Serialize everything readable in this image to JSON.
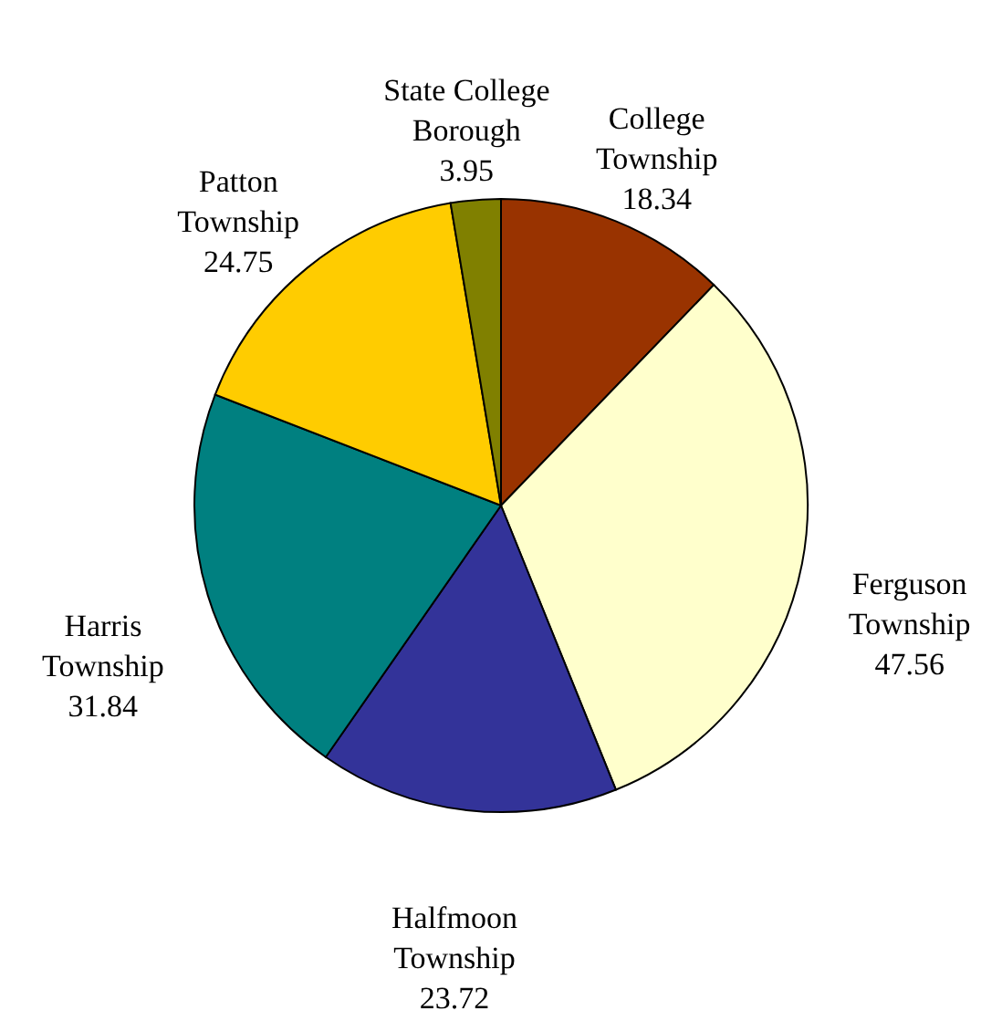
{
  "chart_data": {
    "type": "pie",
    "categories": [
      "College Township",
      "Ferguson Township",
      "Halfmoon Township",
      "Harris Township",
      "Patton Township",
      "State College Borough"
    ],
    "values": [
      18.34,
      47.56,
      23.72,
      31.84,
      24.75,
      3.95
    ],
    "colors": [
      "#993300",
      "#ffffcc",
      "#333399",
      "#008080",
      "#ffcc00",
      "#808000"
    ],
    "data_labels": true
  }
}
